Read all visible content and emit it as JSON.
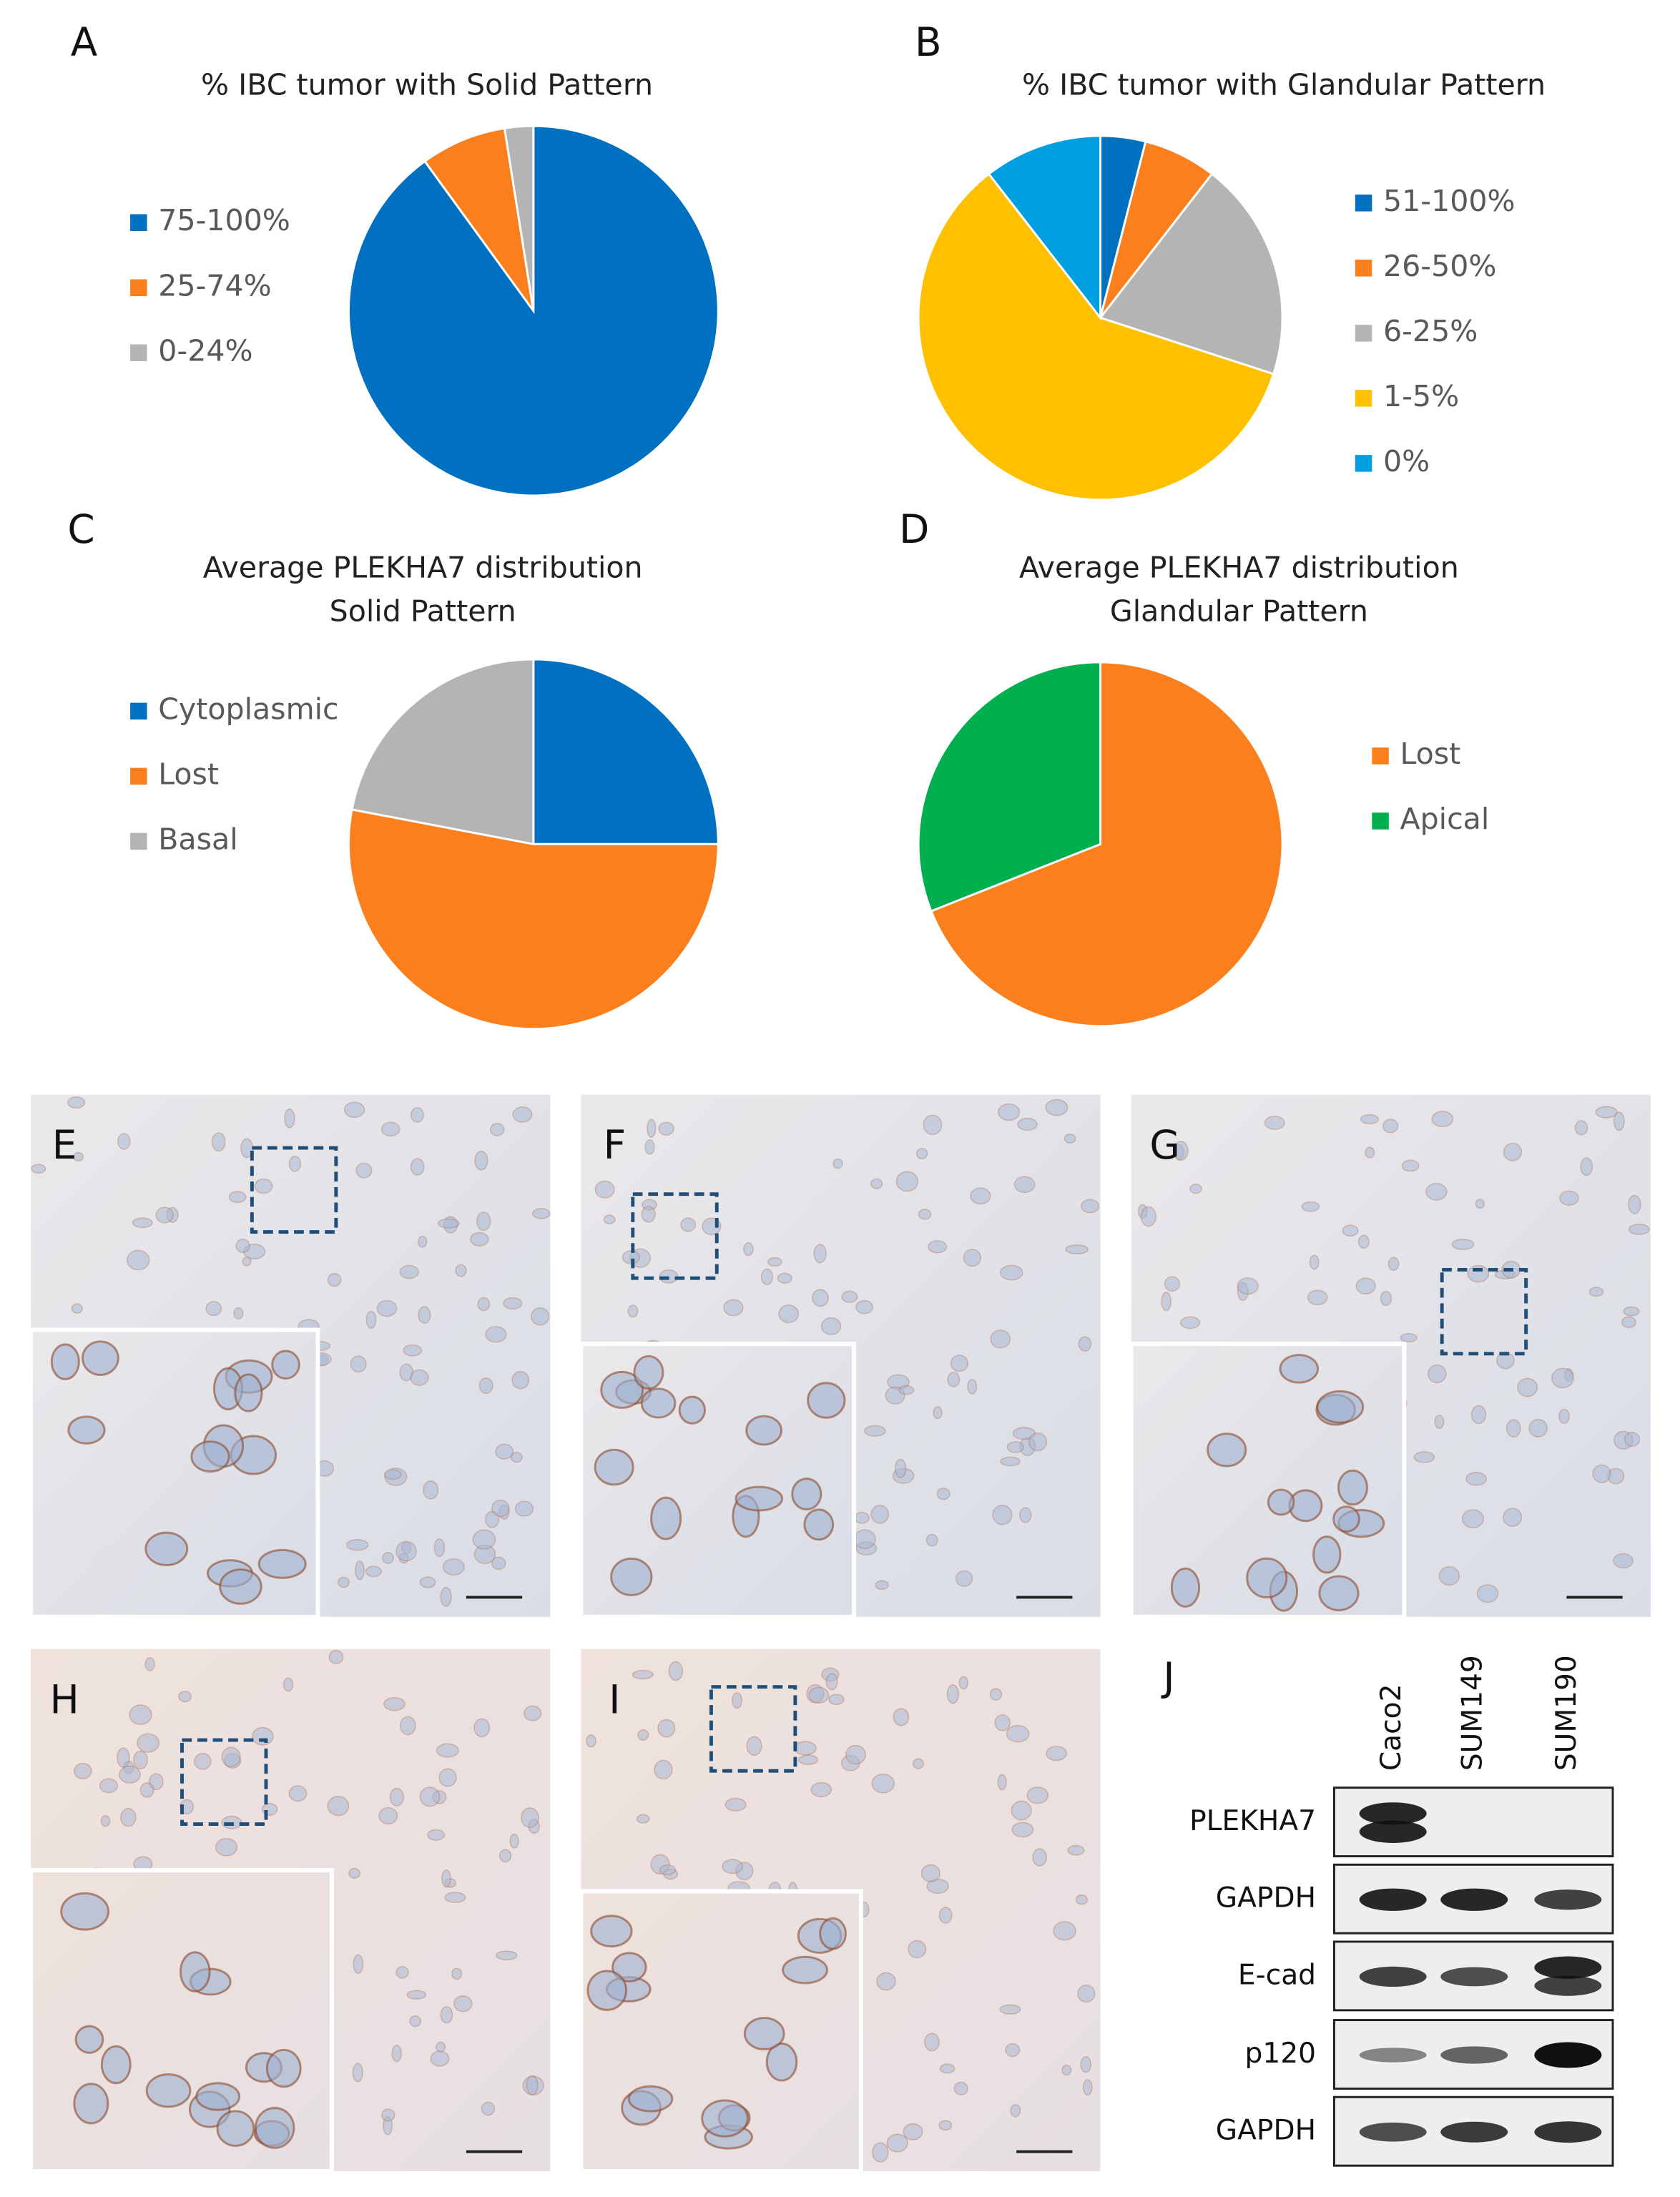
{
  "chart_data": [
    {
      "type": "pie",
      "label": "A",
      "title": "% IBC tumor with Solid Pattern",
      "categories": [
        "75-100%",
        "25-74%",
        "0-24%"
      ],
      "values": [
        90,
        7.5,
        2.5
      ],
      "colors": [
        "#0070c0",
        "#fb7f1d",
        "#b4b4b4"
      ],
      "legend": "left"
    },
    {
      "type": "pie",
      "label": "B",
      "title": "% IBC tumor with Glandular Pattern",
      "categories": [
        "51-100%",
        "26-50%",
        "6-25%",
        "1-5%",
        "0%"
      ],
      "values": [
        4,
        6.5,
        19.5,
        59.5,
        10.5
      ],
      "colors": [
        "#0070c0",
        "#fb7f1d",
        "#b4b4b4",
        "#ffc000",
        "#009fdf"
      ],
      "legend": "right"
    },
    {
      "type": "pie",
      "label": "C",
      "title": "Average PLEKHA7 distribution",
      "subtitle": "Solid Pattern",
      "categories": [
        "Cytoplasmic",
        "Lost",
        "Basal"
      ],
      "values": [
        25,
        53,
        22
      ],
      "colors": [
        "#0070c0",
        "#fb7f1d",
        "#b4b4b4"
      ],
      "legend": "left"
    },
    {
      "type": "pie",
      "label": "D",
      "title": "Average PLEKHA7 distribution",
      "subtitle": "Glandular Pattern",
      "categories": [
        "Lost",
        "Apical"
      ],
      "values": [
        69,
        31
      ],
      "colors": [
        "#fb7f1d",
        "#00b04f"
      ],
      "legend": "right"
    }
  ],
  "micrographs": [
    "E",
    "F",
    "G",
    "H",
    "I"
  ],
  "blot": {
    "label": "J",
    "lanes": [
      "Caco2",
      "SUM149",
      "SUM190"
    ],
    "rows": [
      "PLEKHA7",
      "GAPDH",
      "E-cad",
      "p120",
      "GAPDH"
    ]
  }
}
